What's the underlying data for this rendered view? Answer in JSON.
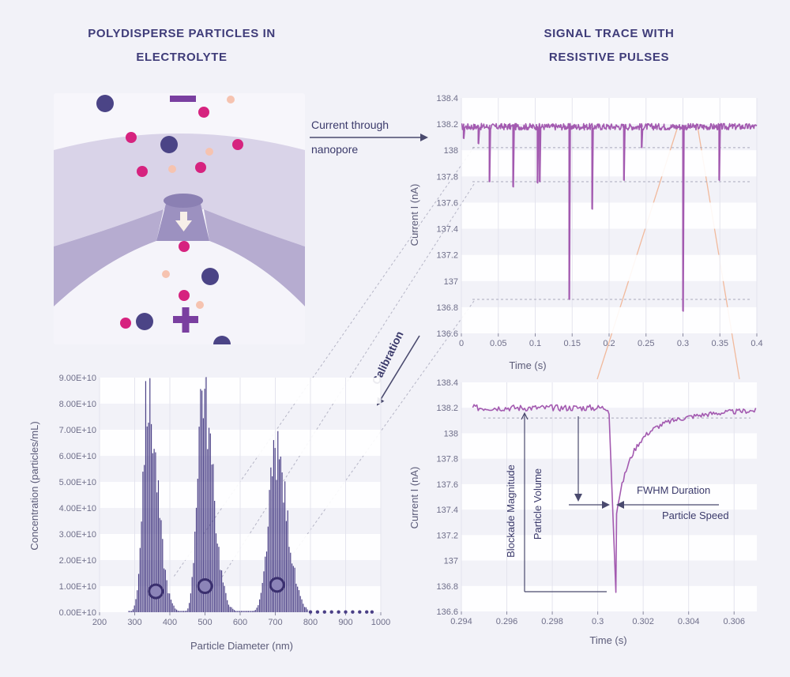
{
  "headings": {
    "left_line1": "POLYDISPERSE PARTICLES IN",
    "left_line2": "ELECTROLYTE",
    "right_line1": "SIGNAL TRACE WITH",
    "right_line2": "RESISTIVE PULSES"
  },
  "labels": {
    "current_line1": "Current through",
    "current_line2": "nanopore",
    "calibration": "Calibration",
    "blockade": "Blockade Magnitude",
    "particle_volume": "Particle Volume",
    "fwhm": "FWHM Duration",
    "particle_speed": "Particle Speed"
  },
  "colors": {
    "trace": "#a35ab0",
    "bars": "#4a3f86",
    "bars_dark": "#3a2f6e",
    "magenta": "#d6237f",
    "navy": "#4b4486",
    "peach": "#f6c3b0",
    "pore_light": "#d7d2e6",
    "pore_mid": "#b7afd0",
    "pore_dark": "#9a8fbe",
    "accent_orange": "#f0b89a",
    "dashed": "#a9a9bb"
  },
  "chart_data": [
    {
      "type": "line",
      "id": "trace",
      "title": "",
      "xlabel": "Time (s)",
      "ylabel": "Current I (nA)",
      "xlim": [
        0,
        0.4
      ],
      "ylim": [
        136.6,
        138.4
      ],
      "x_ticks": [
        "0",
        "0.05",
        "0.1",
        "0.15",
        "0.2",
        "0.25",
        "0.3",
        "0.35",
        "0.4"
      ],
      "y_ticks": [
        "138.4",
        "138.2",
        "138",
        "137.8",
        "137.6",
        "137.4",
        "137.2",
        "137",
        "136.8",
        "136.6"
      ],
      "baseline": 138.18,
      "pulses": [
        {
          "t": 0.003,
          "depth": 138.09
        },
        {
          "t": 0.023,
          "depth": 138.05
        },
        {
          "t": 0.038,
          "depth": 137.76
        },
        {
          "t": 0.07,
          "depth": 137.72
        },
        {
          "t": 0.103,
          "depth": 137.75
        },
        {
          "t": 0.106,
          "depth": 137.76
        },
        {
          "t": 0.146,
          "depth": 136.86
        },
        {
          "t": 0.177,
          "depth": 137.55
        },
        {
          "t": 0.22,
          "depth": 137.77
        },
        {
          "t": 0.244,
          "depth": 138.02
        },
        {
          "t": 0.3,
          "depth": 136.77
        },
        {
          "t": 0.349,
          "depth": 137.77
        }
      ],
      "reference_levels": [
        138.02,
        137.76,
        136.86
      ]
    },
    {
      "type": "line",
      "id": "zoom",
      "title": "",
      "xlabel": "Time (s)",
      "ylabel": "Current I (nA)",
      "xlim": [
        0.294,
        0.307
      ],
      "ylim": [
        136.6,
        138.4
      ],
      "x_ticks": [
        "0.294",
        "0.296",
        "0.298",
        "0.3",
        "0.302",
        "0.304",
        "0.306"
      ],
      "y_ticks": [
        "138.4",
        "138.2",
        "138",
        "137.8",
        "137.6",
        "137.4",
        "137.2",
        "137",
        "136.8",
        "136.6"
      ],
      "baseline": 138.2,
      "pulse_start": 0.3005,
      "pulse_min_time": 0.3008,
      "pulse_min": 136.75,
      "half_level": 137.45
    },
    {
      "type": "bar",
      "id": "histogram",
      "title": "",
      "xlabel": "Particle Diameter (nm)",
      "ylabel": "Concentration (particles/mL)",
      "xlim": [
        200,
        1000
      ],
      "ylim": [
        0,
        90000000000.0
      ],
      "x_ticks": [
        "200",
        "300",
        "400",
        "500",
        "600",
        "700",
        "800",
        "900",
        "1000"
      ],
      "y_ticks": [
        "9.00E+10",
        "8.00E+10",
        "7.00E+10",
        "6.00E+10",
        "5.00E+10",
        "4.00E+10",
        "3.00E+10",
        "2.00E+10",
        "1.00E+10",
        "0.00E+10"
      ],
      "peaks": [
        {
          "center": 335,
          "height": 81000000000.0,
          "sigma_left": 14,
          "sigma_right": 28
        },
        {
          "center": 490,
          "height": 86000000000.0,
          "sigma_left": 14,
          "sigma_right": 30
        },
        {
          "center": 700,
          "height": 61000000000.0,
          "sigma_left": 20,
          "sigma_right": 32
        }
      ],
      "markers": [
        {
          "x": 360,
          "y": 8000000000.0
        },
        {
          "x": 500,
          "y": 10000000000.0
        },
        {
          "x": 705,
          "y": 10500000000.0
        }
      ],
      "tail_points": [
        800,
        820,
        840,
        860,
        880,
        900,
        920,
        940,
        960,
        975
      ]
    }
  ]
}
